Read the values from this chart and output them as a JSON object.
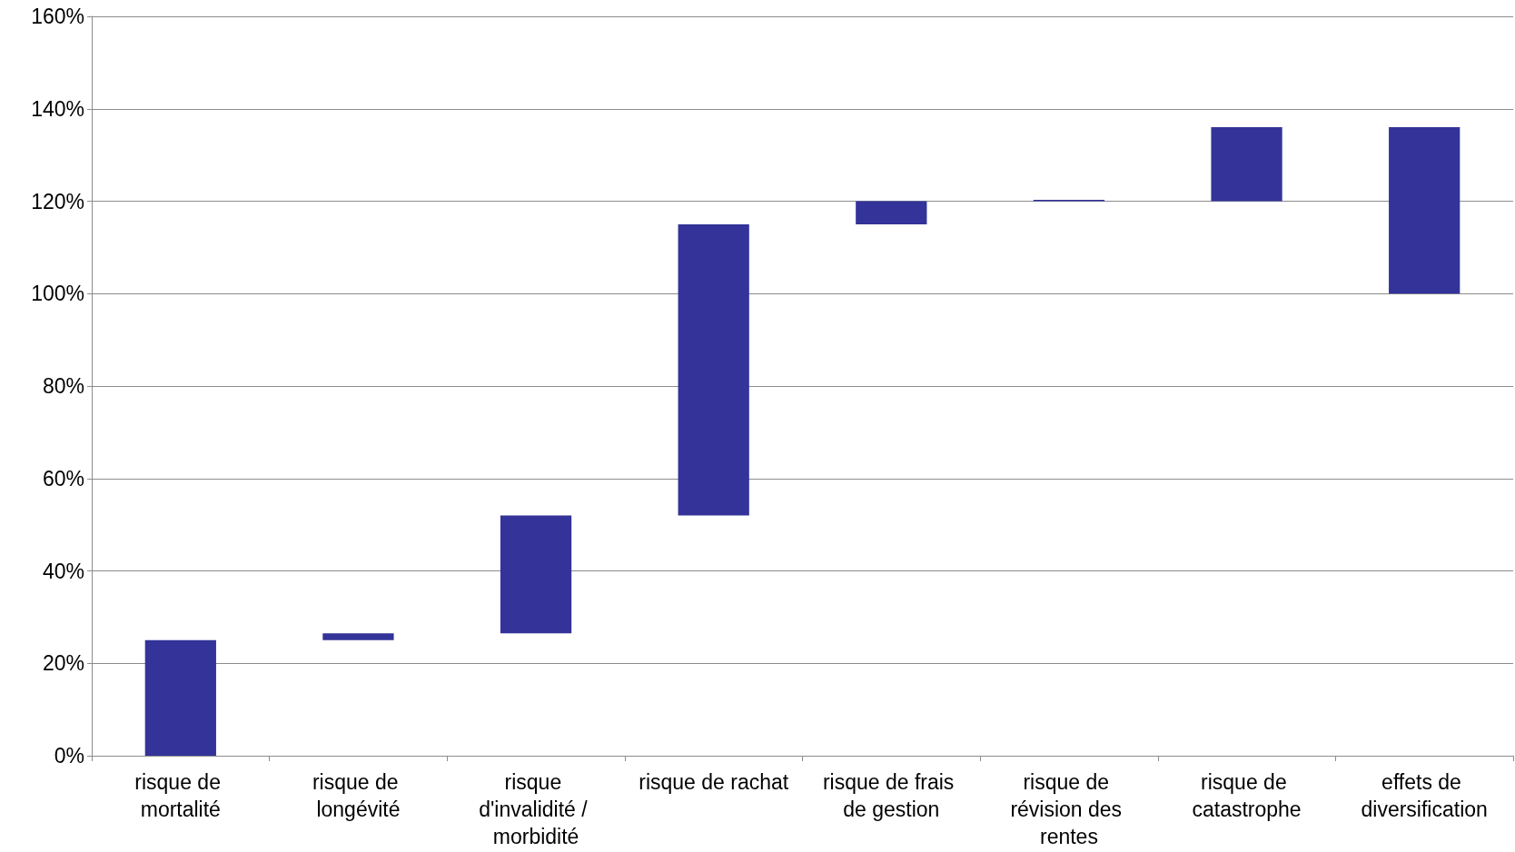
{
  "chart_data": {
    "type": "bar",
    "categories": [
      "risque de mortalité",
      "risque de longévité",
      "risque d'invalidité / morbidité",
      "risque de rachat",
      "risque de frais de gestion",
      "risque de révision des rentes",
      "risque de catastrophe",
      "effets de diversification"
    ],
    "values": [
      25,
      1.5,
      25.5,
      63,
      5,
      0.3,
      16,
      36
    ],
    "base": [
      0,
      25,
      26.5,
      52,
      115,
      120,
      120,
      100
    ],
    "color": "#333399",
    "ylim": [
      0,
      160
    ],
    "yticks": [
      {
        "value": 0,
        "label": "0%"
      },
      {
        "value": 20,
        "label": "20%"
      },
      {
        "value": 40,
        "label": "40%"
      },
      {
        "value": 60,
        "label": "60%"
      },
      {
        "value": 80,
        "label": "80%"
      },
      {
        "value": 100,
        "label": "100%"
      },
      {
        "value": 120,
        "label": "120%"
      },
      {
        "value": 140,
        "label": "140%"
      },
      {
        "value": 160,
        "label": "160%"
      }
    ],
    "grid": "y"
  }
}
